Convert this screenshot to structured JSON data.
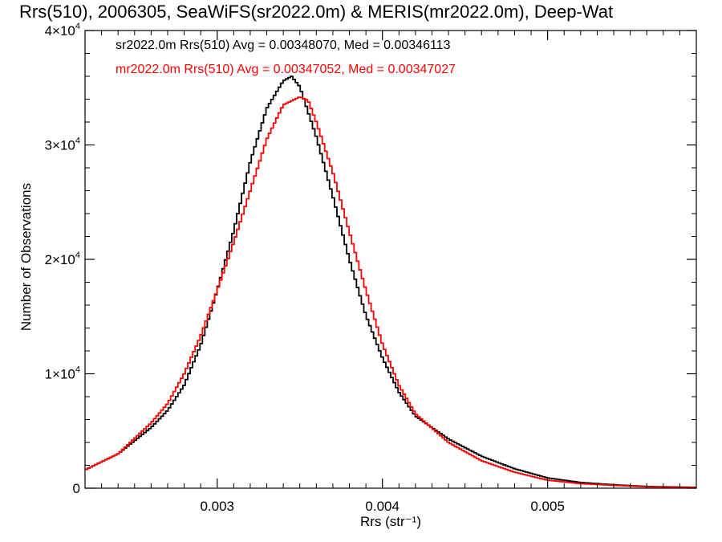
{
  "chart_data": {
    "type": "line",
    "title": "Rrs(510), 2006305, SeaWiFS(sr2022.0m) & MERIS(mr2022.0m), Deep-Wat",
    "xlabel": "Rrs (str⁻¹)",
    "ylabel": "Number of Observations",
    "xlim": [
      0.0022,
      0.0059
    ],
    "ylim": [
      0,
      40000
    ],
    "x_ticks": [
      0.003,
      0.004,
      0.005
    ],
    "x_tick_labels": [
      "0.003",
      "0.004",
      "0.005"
    ],
    "y_ticks": [
      0,
      10000,
      20000,
      30000,
      40000
    ],
    "y_tick_labels": [
      {
        "mantissa": "0",
        "exponent": ""
      },
      {
        "mantissa": "1×10",
        "exponent": "4"
      },
      {
        "mantissa": "2×10",
        "exponent": "4"
      },
      {
        "mantissa": "3×10",
        "exponent": "4"
      },
      {
        "mantissa": "4×10",
        "exponent": "4"
      }
    ],
    "grid": false,
    "legend_position": "top-left",
    "annotations": [
      {
        "text": "sr2022.0m Rrs(510) Avg = 0.00348070, Med = 0.00346113",
        "color": "#000000"
      },
      {
        "text": "mr2022.0m Rrs(510) Avg = 0.00347052, Med = 0.00347027",
        "color": "#ff0000"
      }
    ],
    "series": [
      {
        "color": "#000000",
        "x": [
          0.0022,
          0.0024,
          0.0026,
          0.0027,
          0.0028,
          0.0029,
          0.003,
          0.0031,
          0.0032,
          0.0033,
          0.0034,
          0.00345,
          0.0035,
          0.0036,
          0.0037,
          0.0038,
          0.0039,
          0.004,
          0.0041,
          0.0042,
          0.0044,
          0.0046,
          0.0048,
          0.005,
          0.0052,
          0.0054,
          0.0056,
          0.0059
        ],
        "values": [
          1600,
          3000,
          5300,
          6800,
          9000,
          12500,
          17300,
          22500,
          28500,
          33200,
          35600,
          36000,
          35100,
          30700,
          25500,
          20000,
          15100,
          11400,
          8400,
          6300,
          4300,
          2800,
          1700,
          900,
          500,
          300,
          150,
          80
        ]
      },
      {
        "color": "#ff0000",
        "x": [
          0.0022,
          0.0024,
          0.0026,
          0.0027,
          0.0028,
          0.0029,
          0.003,
          0.0031,
          0.0032,
          0.0033,
          0.0034,
          0.0035,
          0.00355,
          0.0036,
          0.0037,
          0.0038,
          0.0039,
          0.004,
          0.0041,
          0.0042,
          0.0044,
          0.0046,
          0.0048,
          0.005,
          0.0052,
          0.0054,
          0.0056,
          0.0059
        ],
        "values": [
          1600,
          3000,
          5700,
          7400,
          10000,
          13300,
          17300,
          21500,
          26000,
          30500,
          33500,
          34200,
          33900,
          32000,
          27600,
          22400,
          17300,
          12600,
          9000,
          6500,
          4000,
          2400,
          1400,
          700,
          400,
          250,
          120,
          60
        ]
      }
    ]
  }
}
